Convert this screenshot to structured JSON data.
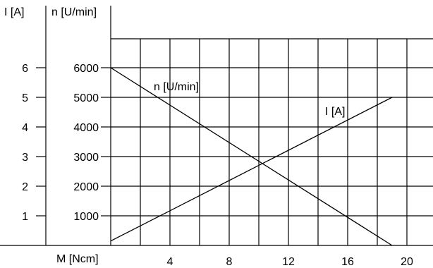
{
  "chart_data": {
    "type": "line",
    "title": "",
    "xlabel": "M [Ncm]",
    "ylabel_left": "I [A]",
    "ylabel_right": "n [U/min]",
    "xlim": [
      0,
      22
    ],
    "xticks": [
      4,
      8,
      12,
      16,
      20
    ],
    "xtick_labels": [
      "4",
      "8",
      "12",
      "16",
      "20"
    ],
    "ylim_left": [
      0,
      7
    ],
    "yticks_left": [
      1,
      2,
      3,
      4,
      5,
      6
    ],
    "ytick_labels_left": [
      "1",
      "2",
      "3",
      "4",
      "5",
      "6"
    ],
    "ylim_right": [
      0,
      7000
    ],
    "yticks_right": [
      1000,
      2000,
      3000,
      4000,
      5000,
      6000
    ],
    "ytick_labels_right": [
      "1000",
      "2000",
      "3000",
      "4000",
      "5000",
      "6000"
    ],
    "grid": true,
    "series": [
      {
        "name": "n [U/min]",
        "axis": "right",
        "x": [
          0,
          19
        ],
        "y": [
          6000,
          0
        ]
      },
      {
        "name": "I [A]",
        "axis": "left",
        "x": [
          0,
          19
        ],
        "y": [
          0.15,
          5
        ]
      }
    ]
  }
}
